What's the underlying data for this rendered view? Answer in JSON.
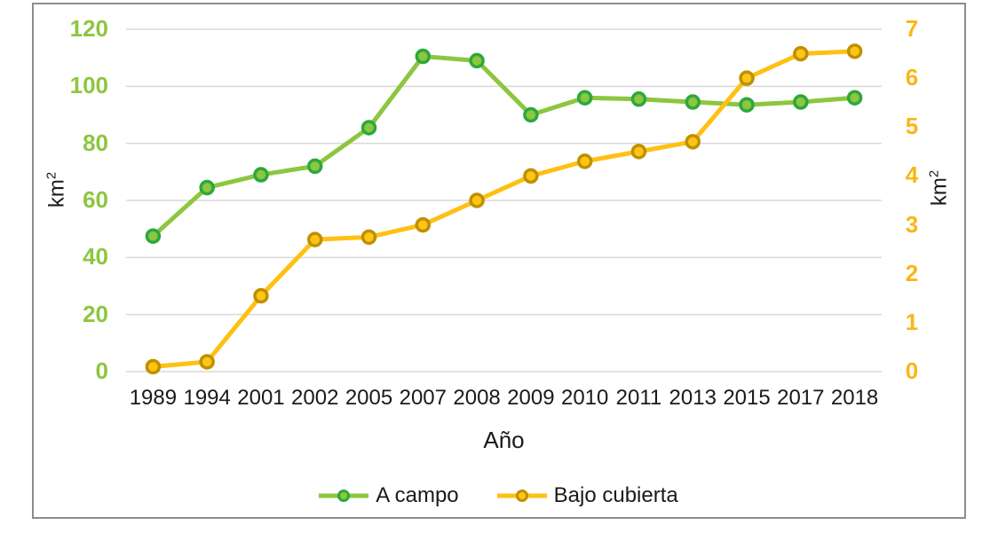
{
  "chart_data": {
    "type": "line",
    "categories": [
      "1989",
      "1994",
      "2001",
      "2002",
      "2005",
      "2007",
      "2008",
      "2009",
      "2010",
      "2011",
      "2013",
      "2015",
      "2017",
      "2018"
    ],
    "series": [
      {
        "name": "A campo",
        "axis": "left",
        "line_color": "#8dc63f",
        "marker_fill": "#8dc63f",
        "marker_stroke": "#2da83d",
        "values": [
          47.5,
          64.5,
          69,
          72,
          85.5,
          110.5,
          109,
          90,
          96,
          95.5,
          94.5,
          93.5,
          94.5,
          96
        ]
      },
      {
        "name": "Bajo cubierta",
        "axis": "right",
        "line_color": "#ffc013",
        "marker_fill": "#ffc516",
        "marker_stroke": "#bf9000",
        "values": [
          0.1,
          0.2,
          1.55,
          2.7,
          2.75,
          3.0,
          3.5,
          4.0,
          4.3,
          4.5,
          4.7,
          6.0,
          6.5,
          6.55
        ]
      }
    ],
    "x_axis": {
      "title": "Año"
    },
    "y_axis_left": {
      "title": "km²",
      "min": 0,
      "max": 120,
      "ticks": [
        0,
        20,
        40,
        60,
        80,
        100,
        120
      ],
      "label_color": "#8dc63f"
    },
    "y_axis_right": {
      "title": "km²",
      "min": 0,
      "max": 7,
      "ticks": [
        0,
        1,
        2,
        3,
        4,
        5,
        6,
        7
      ],
      "label_color": "#fbb616"
    },
    "grid": "on",
    "grid_color": "#d9d9d9",
    "legend_position": "bottom"
  }
}
